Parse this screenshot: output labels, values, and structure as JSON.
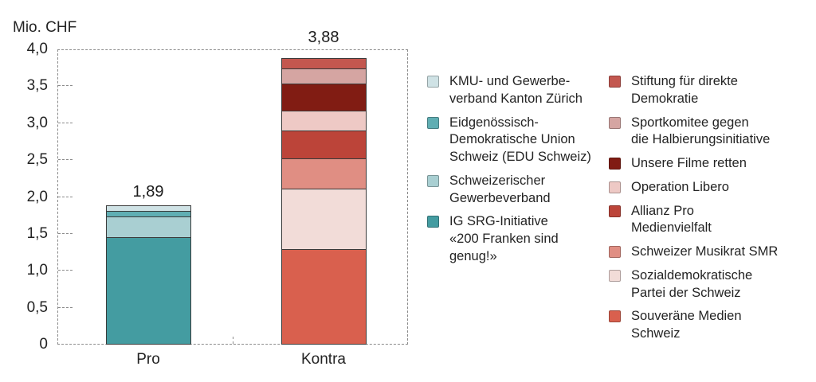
{
  "chart_data": {
    "type": "bar",
    "stacked": true,
    "ylabel": "Mio. CHF",
    "ylim": [
      0,
      4.0
    ],
    "grid": false,
    "legend_position": "right",
    "yticks": [
      {
        "value": 4.0,
        "label": "4,0"
      },
      {
        "value": 3.5,
        "label": "3,5"
      },
      {
        "value": 3.0,
        "label": "3,0"
      },
      {
        "value": 2.5,
        "label": "2,5"
      },
      {
        "value": 2.0,
        "label": "2,0"
      },
      {
        "value": 1.5,
        "label": "1,5"
      },
      {
        "value": 1.0,
        "label": "1,0"
      },
      {
        "value": 0.5,
        "label": "0,5"
      },
      {
        "value": 0,
        "label": "0"
      }
    ],
    "categories": [
      "Pro",
      "Kontra"
    ],
    "bars": [
      {
        "category": "Pro",
        "total": 1.89,
        "total_label": "1,89",
        "segments_bottom_to_top": [
          {
            "name": "IG SRG-Initiative «200 Franken sind genug!»",
            "value": 1.48,
            "color": "#449ca1"
          },
          {
            "name": "Schweizerischer Gewerbeverband",
            "value": 0.27,
            "color": "#a9cfd2"
          },
          {
            "name": "Eidgenössisch-Demokratische Union Schweiz (EDU Schweiz)",
            "value": 0.07,
            "color": "#60aeb3"
          },
          {
            "name": "KMU- und Gewerbeverband Kanton Zürich",
            "value": 0.07,
            "color": "#cfe2e5"
          }
        ]
      },
      {
        "category": "Kontra",
        "total": 3.88,
        "total_label": "3,88",
        "segments_bottom_to_top": [
          {
            "name": "Souveräne Medien Schweiz",
            "value": 1.31,
            "color": "#d9604e"
          },
          {
            "name": "Sozialdemokratische Partei der Schweiz",
            "value": 0.82,
            "color": "#f2dcd8"
          },
          {
            "name": "Schweizer Musikrat SMR",
            "value": 0.41,
            "color": "#e08e83"
          },
          {
            "name": "Allianz Pro Medienvielfalt",
            "value": 0.38,
            "color": "#bc4439"
          },
          {
            "name": "Operation Libero",
            "value": 0.27,
            "color": "#eec9c5"
          },
          {
            "name": "Unsere Filme retten",
            "value": 0.36,
            "color": "#811c13"
          },
          {
            "name": "Sportkomitee gegen die Halbierungsinitiative",
            "value": 0.2,
            "color": "#d5a5a2"
          },
          {
            "name": "Stiftung für direkte Demokratie",
            "value": 0.13,
            "color": "#c3574f"
          }
        ]
      }
    ]
  },
  "legend": {
    "columns": [
      {
        "items": [
          {
            "label": "KMU- und Gewerbe-\nverband Kanton Zürich",
            "color": "#cfe2e5"
          },
          {
            "label": "Eidgenössisch-\nDemokratische Union\nSchweiz (EDU Schweiz)",
            "color": "#60aeb3"
          },
          {
            "label": "Schweizerischer\nGewerbeverband",
            "color": "#a9cfd2"
          },
          {
            "label": "IG SRG-Initiative\n«200 Franken sind\ngenug!»",
            "color": "#449ca1"
          }
        ]
      },
      {
        "items": [
          {
            "label": "Stiftung für direkte\nDemokratie",
            "color": "#c3574f"
          },
          {
            "label": "Sportkomitee gegen\ndie Halbierungsinitiative",
            "color": "#d5a5a2"
          },
          {
            "label": "Unsere Filme retten",
            "color": "#811c13"
          },
          {
            "label": "Operation Libero",
            "color": "#eec9c5"
          },
          {
            "label": "Allianz Pro\nMedienvielfalt",
            "color": "#bc4439"
          },
          {
            "label": "Schweizer Musikrat SMR",
            "color": "#e08e83"
          },
          {
            "label": "Sozialdemokratische\nPartei der Schweiz",
            "color": "#f2dcd8"
          },
          {
            "label": "Souveräne Medien\nSchweiz",
            "color": "#d9604e"
          }
        ]
      }
    ]
  }
}
